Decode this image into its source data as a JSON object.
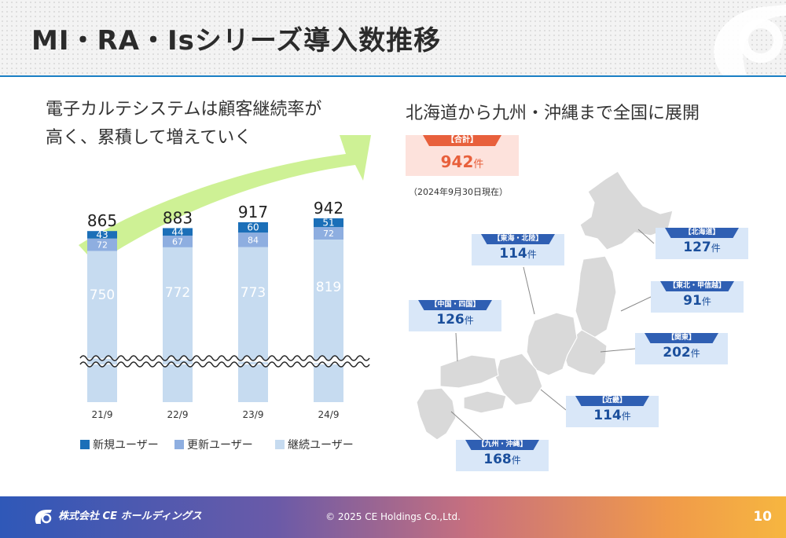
{
  "title": "MI・RA・Isシリーズ導入数推移",
  "left": {
    "subtitle_line1": "電子カルテシステムは顧客継続率が",
    "subtitle_line2": "高く、累積して増えていく"
  },
  "right": {
    "subtitle": "北海道から九州・沖縄まで全国に展開",
    "total": {
      "label": "【合計】",
      "value": "942",
      "unit": "件"
    },
    "as_of": "（2024年9月30日現在）",
    "regions": [
      {
        "label": "【北海道】",
        "value": "127",
        "unit": "件"
      },
      {
        "label": "【東北・甲信越】",
        "value": "91",
        "unit": "件"
      },
      {
        "label": "【関東】",
        "value": "202",
        "unit": "件"
      },
      {
        "label": "【近畿】",
        "value": "114",
        "unit": "件"
      },
      {
        "label": "【九州・沖縄】",
        "value": "168",
        "unit": "件"
      },
      {
        "label": "【中国・四国】",
        "value": "126",
        "unit": "件"
      },
      {
        "label": "【東海・北陸】",
        "value": "114",
        "unit": "件"
      }
    ]
  },
  "chart_data": {
    "type": "bar",
    "stacked": true,
    "axis_break": true,
    "categories": [
      "21/9",
      "22/9",
      "23/9",
      "24/9"
    ],
    "totals": [
      865,
      883,
      917,
      942
    ],
    "series": [
      {
        "name": "継続ユーザー",
        "values": [
          750,
          772,
          773,
          819
        ],
        "color": "#c6dbf0"
      },
      {
        "name": "更新ユーザー",
        "values": [
          72,
          67,
          84,
          72
        ],
        "color": "#8eaee0"
      },
      {
        "name": "新規ユーザー",
        "values": [
          43,
          44,
          60,
          51
        ],
        "color": "#1b6fb8"
      }
    ],
    "legend_order": [
      "新規ユーザー",
      "更新ユーザー",
      "継続ユーザー"
    ],
    "legend_position": "bottom",
    "grid": false
  },
  "colors": {
    "accent": "#1a7fc4",
    "total": "#e8603c",
    "region_tag": "#2f5fb3",
    "arrow": "#c9ef8a"
  },
  "footer": {
    "logo_text": "株式会社 CE ホールディングス",
    "copyright": "© 2025 CE Holdings Co.,Ltd.",
    "page_number": "10"
  }
}
